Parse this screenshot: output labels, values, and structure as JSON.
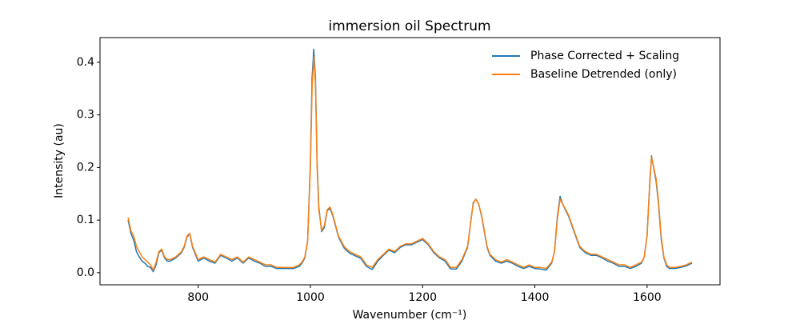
{
  "chart_data": {
    "type": "line",
    "title": "immersion oil Spectrum",
    "xlabel": "Wavenumber (cm⁻¹)",
    "ylabel": "Intensity (au)",
    "x": [
      675,
      680,
      685,
      690,
      695,
      700,
      705,
      710,
      715,
      720,
      725,
      730,
      735,
      740,
      745,
      750,
      760,
      770,
      775,
      780,
      785,
      790,
      800,
      810,
      820,
      830,
      840,
      850,
      860,
      870,
      880,
      890,
      900,
      910,
      920,
      930,
      940,
      950,
      960,
      970,
      980,
      985,
      990,
      995,
      1000,
      1003,
      1006,
      1009,
      1012,
      1015,
      1020,
      1025,
      1030,
      1035,
      1040,
      1045,
      1050,
      1060,
      1070,
      1080,
      1090,
      1100,
      1110,
      1120,
      1130,
      1140,
      1150,
      1160,
      1170,
      1180,
      1190,
      1200,
      1210,
      1220,
      1230,
      1240,
      1250,
      1260,
      1270,
      1280,
      1285,
      1290,
      1295,
      1300,
      1305,
      1310,
      1315,
      1320,
      1330,
      1340,
      1350,
      1360,
      1370,
      1380,
      1390,
      1400,
      1410,
      1420,
      1430,
      1435,
      1440,
      1445,
      1450,
      1455,
      1460,
      1470,
      1480,
      1490,
      1500,
      1510,
      1520,
      1530,
      1540,
      1550,
      1560,
      1570,
      1580,
      1590,
      1595,
      1600,
      1605,
      1608,
      1612,
      1616,
      1620,
      1625,
      1630,
      1635,
      1640,
      1650,
      1660,
      1670,
      1680
    ],
    "series": [
      {
        "name": "Phase Corrected + Scaling",
        "color": "#1f77b4",
        "values": [
          0.1,
          0.075,
          0.062,
          0.04,
          0.03,
          0.022,
          0.018,
          0.012,
          0.01,
          0.002,
          0.015,
          0.038,
          0.043,
          0.028,
          0.022,
          0.022,
          0.028,
          0.038,
          0.048,
          0.068,
          0.074,
          0.048,
          0.022,
          0.028,
          0.022,
          0.018,
          0.033,
          0.028,
          0.022,
          0.028,
          0.018,
          0.028,
          0.022,
          0.018,
          0.012,
          0.012,
          0.008,
          0.008,
          0.008,
          0.008,
          0.012,
          0.018,
          0.028,
          0.06,
          0.21,
          0.37,
          0.425,
          0.37,
          0.21,
          0.125,
          0.078,
          0.086,
          0.118,
          0.122,
          0.108,
          0.088,
          0.068,
          0.047,
          0.037,
          0.032,
          0.027,
          0.012,
          0.006,
          0.022,
          0.033,
          0.043,
          0.038,
          0.048,
          0.053,
          0.053,
          0.058,
          0.063,
          0.053,
          0.038,
          0.028,
          0.022,
          0.007,
          0.007,
          0.022,
          0.048,
          0.09,
          0.132,
          0.14,
          0.13,
          0.108,
          0.078,
          0.048,
          0.033,
          0.022,
          0.018,
          0.022,
          0.018,
          0.012,
          0.008,
          0.012,
          0.008,
          0.007,
          0.005,
          0.018,
          0.04,
          0.105,
          0.145,
          0.13,
          0.118,
          0.108,
          0.078,
          0.048,
          0.038,
          0.033,
          0.033,
          0.028,
          0.022,
          0.018,
          0.012,
          0.012,
          0.008,
          0.012,
          0.018,
          0.03,
          0.07,
          0.175,
          0.222,
          0.198,
          0.175,
          0.135,
          0.065,
          0.028,
          0.012,
          0.008,
          0.008,
          0.01,
          0.013,
          0.018
        ]
      },
      {
        "name": "Baseline Detrended (only)",
        "color": "#ff7f0e",
        "values": [
          0.105,
          0.08,
          0.07,
          0.05,
          0.04,
          0.03,
          0.025,
          0.02,
          0.015,
          0.005,
          0.02,
          0.04,
          0.045,
          0.03,
          0.025,
          0.025,
          0.03,
          0.04,
          0.05,
          0.07,
          0.075,
          0.05,
          0.025,
          0.03,
          0.025,
          0.02,
          0.035,
          0.03,
          0.025,
          0.03,
          0.02,
          0.03,
          0.025,
          0.02,
          0.015,
          0.015,
          0.01,
          0.01,
          0.01,
          0.01,
          0.015,
          0.02,
          0.03,
          0.06,
          0.2,
          0.35,
          0.41,
          0.36,
          0.2,
          0.12,
          0.08,
          0.09,
          0.12,
          0.125,
          0.11,
          0.09,
          0.07,
          0.05,
          0.04,
          0.035,
          0.03,
          0.015,
          0.01,
          0.025,
          0.035,
          0.045,
          0.04,
          0.05,
          0.055,
          0.055,
          0.06,
          0.065,
          0.055,
          0.04,
          0.03,
          0.025,
          0.01,
          0.01,
          0.025,
          0.05,
          0.09,
          0.13,
          0.14,
          0.13,
          0.11,
          0.08,
          0.05,
          0.035,
          0.025,
          0.02,
          0.025,
          0.02,
          0.015,
          0.01,
          0.015,
          0.01,
          0.01,
          0.008,
          0.02,
          0.04,
          0.1,
          0.14,
          0.13,
          0.12,
          0.11,
          0.08,
          0.05,
          0.04,
          0.035,
          0.035,
          0.03,
          0.025,
          0.02,
          0.015,
          0.015,
          0.01,
          0.015,
          0.02,
          0.03,
          0.07,
          0.17,
          0.22,
          0.2,
          0.18,
          0.14,
          0.07,
          0.03,
          0.015,
          0.01,
          0.01,
          0.012,
          0.015,
          0.02
        ]
      }
    ],
    "xlim": [
      625,
      1730
    ],
    "xticks": [
      800,
      1000,
      1200,
      1400,
      1600
    ],
    "ylim": [
      -0.023,
      0.447
    ],
    "yticks": [
      {
        "value": 0,
        "label": "0.0"
      },
      0.1,
      0.2,
      0.3,
      0.4
    ],
    "legend": "upper right"
  }
}
